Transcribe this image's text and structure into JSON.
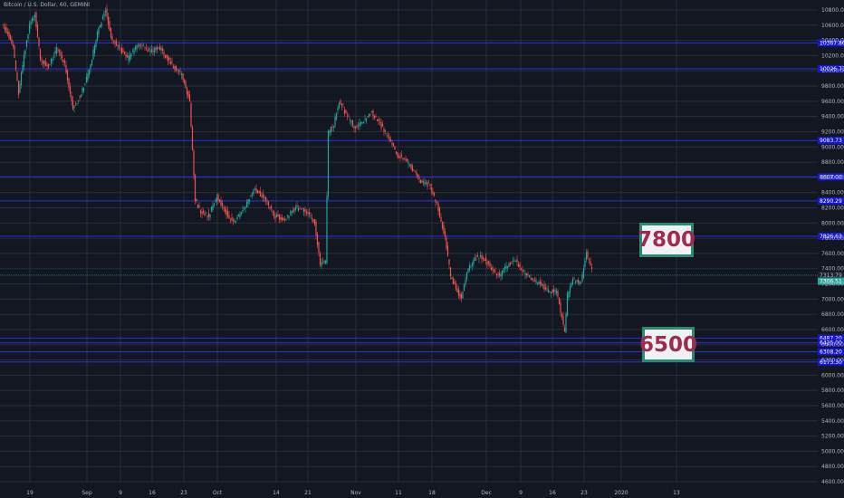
{
  "title": "Bitcoin / U.S. Dollar, 60, GEMINI",
  "colors": {
    "background": "#131722",
    "grid": "#2a2e39",
    "level_line": "#2a2ee8",
    "level_label_bg": "#1616d0",
    "up": "#26a69a",
    "down": "#ef5350",
    "axis_text": "#b2b5be",
    "current_price_bg": "#26a69a",
    "box_border": "#2b8a72",
    "box_text": "#a12a50",
    "box_bg": "#eef2f4"
  },
  "annotations": [
    {
      "text": "7800"
    },
    {
      "text": "6500"
    }
  ],
  "chart_data": {
    "type": "candlestick",
    "title": "Bitcoin / U.S. Dollar, 60, GEMINI",
    "y_axis_ticks": [
      "10800.00",
      "10600.00",
      "10400.00",
      "10200.00",
      "10000.00",
      "9800.00",
      "9600.00",
      "9400.00",
      "9200.00",
      "9000.00",
      "8800.00",
      "8600.00",
      "8400.00",
      "8200.00",
      "8000.00",
      "7800.00",
      "7600.00",
      "7400.00",
      "7200.00",
      "7000.00",
      "6800.00",
      "6600.00",
      "6400.00",
      "6200.00",
      "6000.00",
      "5800.00",
      "5600.00",
      "5400.00",
      "5200.00",
      "5000.00",
      "4800.00",
      "4600.00"
    ],
    "x_axis_ticks": [
      "19",
      "Sep",
      "9",
      "16",
      "23",
      "Oct",
      "14",
      "21",
      "Nov",
      "11",
      "18",
      "Dec",
      "9",
      "16",
      "23",
      "2020",
      "13"
    ],
    "ylim": [
      4600,
      10900
    ],
    "horizontal_levels": [
      "10367.86",
      "10026.73",
      "9083.73",
      "8607.00",
      "8290.29",
      "7826.63",
      "6487.20",
      "6425.00",
      "6308.20",
      "6173.30"
    ],
    "current_price": "7313.79",
    "current_price_label_2": "7306.51",
    "grid": true,
    "price_path": [
      {
        "x": 0,
        "y": 10600
      },
      {
        "x": 2,
        "y": 10500
      },
      {
        "x": 4,
        "y": 10300
      },
      {
        "x": 6,
        "y": 9700
      },
      {
        "x": 8,
        "y": 10200
      },
      {
        "x": 10,
        "y": 10600
      },
      {
        "x": 12,
        "y": 10750
      },
      {
        "x": 14,
        "y": 10150
      },
      {
        "x": 17,
        "y": 10050
      },
      {
        "x": 20,
        "y": 10300
      },
      {
        "x": 23,
        "y": 10100
      },
      {
        "x": 26,
        "y": 9500
      },
      {
        "x": 29,
        "y": 9700
      },
      {
        "x": 32,
        "y": 10000
      },
      {
        "x": 35,
        "y": 10500
      },
      {
        "x": 38,
        "y": 10800
      },
      {
        "x": 40,
        "y": 10450
      },
      {
        "x": 43,
        "y": 10300
      },
      {
        "x": 46,
        "y": 10150
      },
      {
        "x": 50,
        "y": 10350
      },
      {
        "x": 54,
        "y": 10250
      },
      {
        "x": 58,
        "y": 10300
      },
      {
        "x": 62,
        "y": 10100
      },
      {
        "x": 66,
        "y": 9950
      },
      {
        "x": 69,
        "y": 9600
      },
      {
        "x": 71,
        "y": 8300
      },
      {
        "x": 73,
        "y": 8150
      },
      {
        "x": 76,
        "y": 8100
      },
      {
        "x": 79,
        "y": 8350
      },
      {
        "x": 82,
        "y": 8150
      },
      {
        "x": 85,
        "y": 8000
      },
      {
        "x": 89,
        "y": 8200
      },
      {
        "x": 93,
        "y": 8450
      },
      {
        "x": 97,
        "y": 8300
      },
      {
        "x": 100,
        "y": 8100
      },
      {
        "x": 104,
        "y": 8050
      },
      {
        "x": 108,
        "y": 8200
      },
      {
        "x": 112,
        "y": 8150
      },
      {
        "x": 115,
        "y": 8000
      },
      {
        "x": 117,
        "y": 7450
      },
      {
        "x": 119,
        "y": 7500
      },
      {
        "x": 120,
        "y": 9200
      },
      {
        "x": 122,
        "y": 9300
      },
      {
        "x": 124,
        "y": 9600
      },
      {
        "x": 127,
        "y": 9400
      },
      {
        "x": 130,
        "y": 9250
      },
      {
        "x": 133,
        "y": 9350
      },
      {
        "x": 136,
        "y": 9450
      },
      {
        "x": 139,
        "y": 9300
      },
      {
        "x": 142,
        "y": 9150
      },
      {
        "x": 145,
        "y": 8900
      },
      {
        "x": 148,
        "y": 8850
      },
      {
        "x": 151,
        "y": 8700
      },
      {
        "x": 154,
        "y": 8550
      },
      {
        "x": 157,
        "y": 8500
      },
      {
        "x": 160,
        "y": 8250
      },
      {
        "x": 163,
        "y": 7800
      },
      {
        "x": 165,
        "y": 7300
      },
      {
        "x": 167,
        "y": 7150
      },
      {
        "x": 169,
        "y": 7000
      },
      {
        "x": 171,
        "y": 7350
      },
      {
        "x": 174,
        "y": 7550
      },
      {
        "x": 177,
        "y": 7550
      },
      {
        "x": 180,
        "y": 7400
      },
      {
        "x": 183,
        "y": 7300
      },
      {
        "x": 186,
        "y": 7450
      },
      {
        "x": 189,
        "y": 7500
      },
      {
        "x": 192,
        "y": 7350
      },
      {
        "x": 195,
        "y": 7250
      },
      {
        "x": 198,
        "y": 7200
      },
      {
        "x": 201,
        "y": 7100
      },
      {
        "x": 204,
        "y": 7100
      },
      {
        "x": 206,
        "y": 6750
      },
      {
        "x": 207,
        "y": 6550
      },
      {
        "x": 208,
        "y": 7050
      },
      {
        "x": 210,
        "y": 7250
      },
      {
        "x": 213,
        "y": 7200
      },
      {
        "x": 215,
        "y": 7600
      },
      {
        "x": 217,
        "y": 7400
      }
    ]
  }
}
